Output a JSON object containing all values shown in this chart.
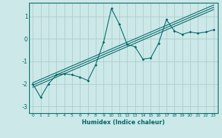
{
  "xlabel": "Humidex (Indice chaleur)",
  "background_color": "#cce8e8",
  "grid_color": "#aacccc",
  "line_color": "#006666",
  "xlim": [
    -0.5,
    23.5
  ],
  "ylim": [
    -3.3,
    1.6
  ],
  "yticks": [
    -3,
    -2,
    -1,
    0,
    1
  ],
  "xticks": [
    0,
    1,
    2,
    3,
    4,
    5,
    6,
    7,
    8,
    9,
    10,
    11,
    12,
    13,
    14,
    15,
    16,
    17,
    18,
    19,
    20,
    21,
    22,
    23
  ],
  "x_data": [
    0,
    1,
    2,
    3,
    4,
    5,
    6,
    7,
    8,
    9,
    10,
    11,
    12,
    13,
    14,
    15,
    16,
    17,
    18,
    19,
    20,
    21,
    22,
    23
  ],
  "y_main": [
    -2.0,
    -2.6,
    -2.0,
    -1.6,
    -1.55,
    -1.6,
    -1.7,
    -1.85,
    -1.15,
    -0.15,
    1.35,
    0.65,
    -0.25,
    -0.35,
    -0.9,
    -0.85,
    -0.2,
    0.85,
    0.35,
    0.2,
    0.3,
    0.25,
    0.3,
    0.4
  ],
  "y_reg1": [
    -2.05,
    -1.9,
    -1.75,
    -1.6,
    -1.45,
    -1.3,
    -1.15,
    -1.0,
    -0.85,
    -0.7,
    -0.55,
    -0.4,
    -0.25,
    -0.1,
    0.05,
    0.2,
    0.35,
    0.5,
    0.65,
    0.8,
    0.95,
    1.1,
    1.25,
    1.4
  ],
  "y_reg2": [
    -1.95,
    -1.8,
    -1.65,
    -1.5,
    -1.35,
    -1.2,
    -1.05,
    -0.9,
    -0.75,
    -0.6,
    -0.45,
    -0.3,
    -0.15,
    0.0,
    0.15,
    0.3,
    0.45,
    0.6,
    0.75,
    0.9,
    1.05,
    1.2,
    1.35,
    1.5
  ],
  "y_reg3": [
    -2.15,
    -2.0,
    -1.85,
    -1.7,
    -1.55,
    -1.4,
    -1.25,
    -1.1,
    -0.95,
    -0.8,
    -0.65,
    -0.5,
    -0.35,
    -0.2,
    -0.05,
    0.1,
    0.25,
    0.4,
    0.55,
    0.7,
    0.85,
    1.0,
    1.15,
    1.3
  ]
}
